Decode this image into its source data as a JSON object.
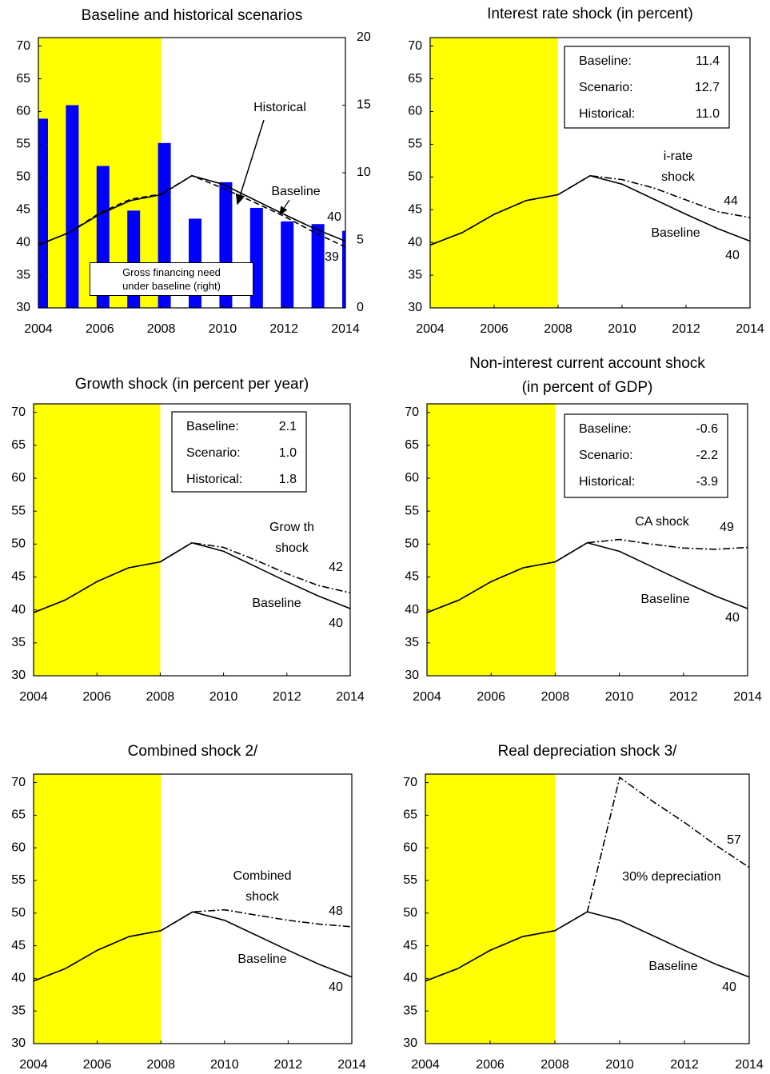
{
  "chart_data": [
    {
      "type": "line",
      "title": "Baseline and historical scenarios",
      "x": [
        2004,
        2005,
        2006,
        2007,
        2008,
        2009,
        2010,
        2011,
        2012,
        2013,
        2014
      ],
      "xlim": [
        2004,
        2014
      ],
      "xticks": [
        2004,
        2006,
        2008,
        2010,
        2012,
        2014
      ],
      "ylim": [
        30,
        71.3
      ],
      "yticks": [
        30,
        35,
        40,
        45,
        50,
        55,
        60,
        65,
        70
      ],
      "y2lim": [
        0,
        20
      ],
      "y2ticks": [
        0,
        5,
        10,
        15,
        20
      ],
      "shade": {
        "from": 2004,
        "to": 2008,
        "color": "#ffff00"
      },
      "series": [
        {
          "name": "Gross financing need\nunder baseline (right)",
          "type": "bar",
          "axis": "y2",
          "color": "#0000ff",
          "values": [
            14,
            15,
            10.5,
            7.2,
            12.2,
            6.6,
            9.3,
            7.4,
            6.4,
            6.2,
            5.7
          ]
        },
        {
          "name": "Baseline",
          "style": "solid",
          "color": "#000000",
          "values": [
            39.6,
            41.5,
            44.3,
            46.4,
            47.3,
            50.2,
            48.9,
            46.6,
            44.3,
            42.1,
            40.2
          ],
          "value_labels": [
            null,
            null,
            null,
            null,
            null,
            null,
            null,
            null,
            null,
            null,
            "40"
          ]
        },
        {
          "name": "Historical",
          "style": "dash",
          "color": "#000000",
          "values": [
            39.6,
            41.5,
            44.5,
            46.6,
            47.4,
            50.2,
            48.3,
            46.2,
            44.0,
            41.5,
            39.3
          ],
          "value_labels": [
            null,
            null,
            null,
            null,
            null,
            null,
            null,
            null,
            null,
            null,
            "39"
          ]
        }
      ]
    },
    {
      "type": "line",
      "title": "Interest rate shock (in percent)",
      "x": [
        2004,
        2005,
        2006,
        2007,
        2008,
        2009,
        2010,
        2011,
        2012,
        2013,
        2014
      ],
      "xlim": [
        2004,
        2014
      ],
      "xticks": [
        2004,
        2006,
        2008,
        2010,
        2012,
        2014
      ],
      "ylim": [
        30,
        71.3
      ],
      "yticks": [
        30,
        35,
        40,
        45,
        50,
        55,
        60,
        65,
        70
      ],
      "shade": {
        "from": 2004,
        "to": 2008,
        "color": "#ffff00"
      },
      "stats": [
        {
          "label": "Baseline:",
          "value": 11.4
        },
        {
          "label": "Scenario:",
          "value": 12.7
        },
        {
          "label": "Historical:",
          "value": 11.0,
          "value_label": "11.0"
        }
      ],
      "series": [
        {
          "name": "Baseline",
          "style": "solid",
          "color": "#000000",
          "values": [
            39.6,
            41.5,
            44.3,
            46.4,
            47.3,
            50.2,
            48.9,
            46.6,
            44.3,
            42.1,
            40.2
          ],
          "value_labels": [
            null,
            null,
            null,
            null,
            null,
            null,
            null,
            null,
            null,
            null,
            "40"
          ]
        },
        {
          "name": "i-rate\nshock",
          "style": "dashdot",
          "color": "#000000",
          "values": [
            39.6,
            41.5,
            44.3,
            46.4,
            47.3,
            50.2,
            49.6,
            48.3,
            46.5,
            44.7,
            43.8
          ],
          "value_labels": [
            null,
            null,
            null,
            null,
            null,
            null,
            null,
            null,
            null,
            null,
            "44"
          ]
        }
      ]
    },
    {
      "type": "line",
      "title": "Growth shock (in percent per year)",
      "x": [
        2004,
        2005,
        2006,
        2007,
        2008,
        2009,
        2010,
        2011,
        2012,
        2013,
        2014
      ],
      "xlim": [
        2004,
        2014
      ],
      "xticks": [
        2004,
        2006,
        2008,
        2010,
        2012,
        2014
      ],
      "ylim": [
        30,
        71.3
      ],
      "yticks": [
        30,
        35,
        40,
        45,
        50,
        55,
        60,
        65,
        70
      ],
      "shade": {
        "from": 2004,
        "to": 2008,
        "color": "#ffff00"
      },
      "stats": [
        {
          "label": "Baseline:",
          "value": 2.1
        },
        {
          "label": "Scenario:",
          "value": 1.0,
          "value_label": "1.0"
        },
        {
          "label": "Historical:",
          "value": 1.8
        }
      ],
      "series": [
        {
          "name": "Baseline",
          "style": "solid",
          "color": "#000000",
          "values": [
            39.6,
            41.5,
            44.3,
            46.4,
            47.3,
            50.2,
            48.9,
            46.6,
            44.3,
            42.1,
            40.2
          ],
          "value_labels": [
            null,
            null,
            null,
            null,
            null,
            null,
            null,
            null,
            null,
            null,
            "40"
          ]
        },
        {
          "name": "Grow th\nshock",
          "style": "dashdot",
          "color": "#000000",
          "values": [
            39.6,
            41.5,
            44.3,
            46.4,
            47.3,
            50.2,
            49.5,
            47.6,
            45.5,
            43.7,
            42.6
          ],
          "value_labels": [
            null,
            null,
            null,
            null,
            null,
            null,
            null,
            null,
            null,
            null,
            "42"
          ]
        }
      ]
    },
    {
      "type": "line",
      "title": "Non-interest current account shock\n(in percent of GDP)",
      "x": [
        2004,
        2005,
        2006,
        2007,
        2008,
        2009,
        2010,
        2011,
        2012,
        2013,
        2014
      ],
      "xlim": [
        2004,
        2014
      ],
      "xticks": [
        2004,
        2006,
        2008,
        2010,
        2012,
        2014
      ],
      "ylim": [
        30,
        71.3
      ],
      "yticks": [
        30,
        35,
        40,
        45,
        50,
        55,
        60,
        65,
        70
      ],
      "shade": {
        "from": 2004,
        "to": 2008,
        "color": "#ffff00"
      },
      "stats": [
        {
          "label": "Baseline:",
          "value": -0.6
        },
        {
          "label": "Scenario:",
          "value": -2.2
        },
        {
          "label": "Historical:",
          "value": -3.9
        }
      ],
      "series": [
        {
          "name": "Baseline",
          "style": "solid",
          "color": "#000000",
          "values": [
            39.6,
            41.5,
            44.3,
            46.4,
            47.3,
            50.2,
            48.9,
            46.6,
            44.3,
            42.1,
            40.2
          ],
          "value_labels": [
            null,
            null,
            null,
            null,
            null,
            null,
            null,
            null,
            null,
            null,
            "40"
          ]
        },
        {
          "name": "CA shock",
          "style": "dashdot",
          "color": "#000000",
          "values": [
            39.6,
            41.5,
            44.3,
            46.4,
            47.3,
            50.2,
            50.7,
            50.0,
            49.4,
            49.2,
            49.5
          ],
          "value_labels": [
            null,
            null,
            null,
            null,
            null,
            null,
            null,
            null,
            null,
            null,
            "49"
          ]
        }
      ]
    },
    {
      "type": "line",
      "title": "Combined shock  2/",
      "x": [
        2004,
        2005,
        2006,
        2007,
        2008,
        2009,
        2010,
        2011,
        2012,
        2013,
        2014
      ],
      "xlim": [
        2004,
        2014
      ],
      "xticks": [
        2004,
        2006,
        2008,
        2010,
        2012,
        2014
      ],
      "ylim": [
        30,
        71.3
      ],
      "yticks": [
        30,
        35,
        40,
        45,
        50,
        55,
        60,
        65,
        70
      ],
      "shade": {
        "from": 2004,
        "to": 2008,
        "color": "#ffff00"
      },
      "series": [
        {
          "name": "Baseline",
          "style": "solid",
          "color": "#000000",
          "values": [
            39.6,
            41.5,
            44.3,
            46.4,
            47.3,
            50.2,
            48.9,
            46.6,
            44.3,
            42.1,
            40.2
          ],
          "value_labels": [
            null,
            null,
            null,
            null,
            null,
            null,
            null,
            null,
            null,
            null,
            "40"
          ]
        },
        {
          "name": "Combined\nshock",
          "style": "dashdot",
          "color": "#000000",
          "values": [
            39.6,
            41.5,
            44.3,
            46.4,
            47.3,
            50.2,
            50.5,
            49.7,
            48.9,
            48.3,
            47.9
          ],
          "value_labels": [
            null,
            null,
            null,
            null,
            null,
            null,
            null,
            null,
            null,
            null,
            "48"
          ]
        }
      ]
    },
    {
      "type": "line",
      "title": "Real depreciation shock  3/",
      "x": [
        2004,
        2005,
        2006,
        2007,
        2008,
        2009,
        2010,
        2011,
        2012,
        2013,
        2014
      ],
      "xlim": [
        2004,
        2014
      ],
      "xticks": [
        2004,
        2006,
        2008,
        2010,
        2012,
        2014
      ],
      "ylim": [
        30,
        71.3
      ],
      "yticks": [
        30,
        35,
        40,
        45,
        50,
        55,
        60,
        65,
        70
      ],
      "shade": {
        "from": 2004,
        "to": 2008,
        "color": "#ffff00"
      },
      "series": [
        {
          "name": "Baseline",
          "style": "solid",
          "color": "#000000",
          "values": [
            39.6,
            41.5,
            44.3,
            46.4,
            47.3,
            50.2,
            48.9,
            46.6,
            44.3,
            42.1,
            40.2
          ],
          "value_labels": [
            null,
            null,
            null,
            null,
            null,
            null,
            null,
            null,
            null,
            null,
            "40"
          ]
        },
        {
          "name": "30% depreciation",
          "style": "dashdot",
          "color": "#000000",
          "values": [
            39.6,
            41.5,
            44.3,
            46.4,
            47.3,
            50.2,
            70.8,
            67.2,
            63.9,
            60.3,
            57.0
          ],
          "value_labels": [
            null,
            null,
            null,
            null,
            null,
            null,
            null,
            null,
            null,
            null,
            "57"
          ]
        }
      ]
    }
  ]
}
